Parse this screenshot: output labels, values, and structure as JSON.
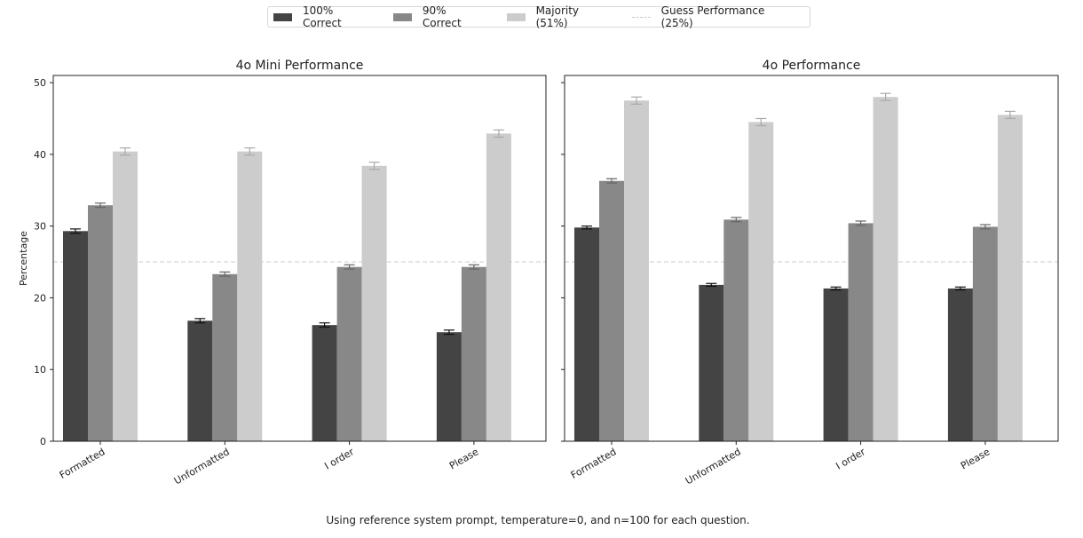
{
  "chart_data": [
    {
      "type": "bar",
      "title": "4o Mini Performance",
      "xlabel": "",
      "ylabel": "Percentage",
      "ylim": [
        0,
        51
      ],
      "yticks": [
        0,
        10,
        20,
        30,
        40,
        50
      ],
      "categories": [
        "Formatted",
        "Unformatted",
        "I order",
        "Please"
      ],
      "series": [
        {
          "name": "100% Correct",
          "values": [
            29.3,
            16.8,
            16.2,
            15.2
          ],
          "error": [
            0.3,
            0.3,
            0.3,
            0.3
          ]
        },
        {
          "name": "90% Correct",
          "values": [
            32.9,
            23.3,
            24.3,
            24.3
          ],
          "error": [
            0.3,
            0.3,
            0.3,
            0.3
          ]
        },
        {
          "name": "Majority (51%)",
          "values": [
            40.4,
            40.4,
            38.4,
            42.9
          ],
          "error": [
            0.5,
            0.5,
            0.5,
            0.5
          ]
        }
      ],
      "reference_line": {
        "name": "Guess Performance (25%)",
        "value": 25
      }
    },
    {
      "type": "bar",
      "title": "4o Performance",
      "xlabel": "",
      "ylabel": "",
      "ylim": [
        0,
        51
      ],
      "yticks": [
        0,
        10,
        20,
        30,
        40,
        50
      ],
      "categories": [
        "Formatted",
        "Unformatted",
        "I order",
        "Please"
      ],
      "series": [
        {
          "name": "100% Correct",
          "values": [
            29.8,
            21.8,
            21.3,
            21.3
          ],
          "error": [
            0.2,
            0.2,
            0.2,
            0.2
          ]
        },
        {
          "name": "90% Correct",
          "values": [
            36.3,
            30.9,
            30.4,
            29.9
          ],
          "error": [
            0.3,
            0.3,
            0.3,
            0.3
          ]
        },
        {
          "name": "Majority (51%)",
          "values": [
            47.5,
            44.5,
            48.0,
            45.5
          ],
          "error": [
            0.5,
            0.5,
            0.5,
            0.5
          ]
        }
      ],
      "reference_line": {
        "name": "Guess Performance (25%)",
        "value": 25
      }
    }
  ],
  "legend": {
    "position": "top-center",
    "items": [
      {
        "label": "100% Correct",
        "color": "#444444",
        "kind": "bar"
      },
      {
        "label": "90% Correct",
        "color": "#888888",
        "kind": "bar"
      },
      {
        "label": "Majority (51%)",
        "color": "#cccccc",
        "kind": "bar"
      },
      {
        "label": "Guess Performance (25%)",
        "color": "#cccccc",
        "kind": "dashed-line"
      }
    ]
  },
  "colors": {
    "series": [
      "#444444",
      "#888888",
      "#cccccc"
    ],
    "errorbar": [
      "#111111",
      "#666666",
      "#aaaaaa"
    ],
    "guess_line": "#cccccc"
  },
  "caption": "Using reference system prompt, temperature=0, and n=100 for each question."
}
